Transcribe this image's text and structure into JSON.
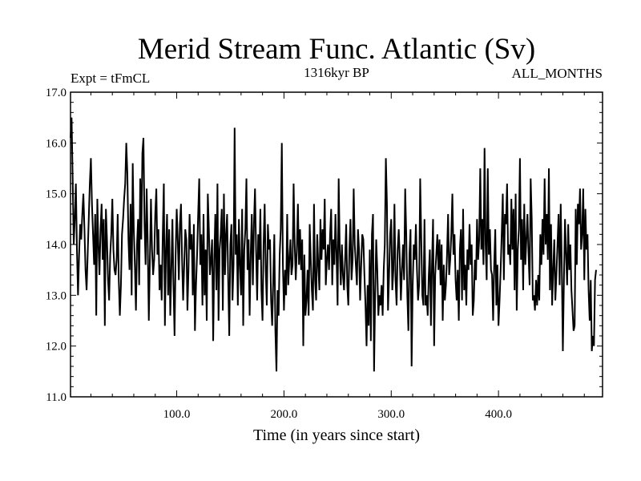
{
  "chart_data": {
    "type": "line",
    "title": "Merid Stream Func. Atlantic (Sv)",
    "subtitle_left": "Expt = tFmCL",
    "subtitle_center": "1316kyr BP",
    "subtitle_right": "ALL_MONTHS",
    "xlabel": "Time (in years since start)",
    "ylabel": "",
    "xlim": [
      1,
      497
    ],
    "ylim": [
      11.0,
      17.0
    ],
    "x_ticks": [
      100,
      200,
      300,
      400
    ],
    "x_tick_labels": [
      "100.0",
      "200.0",
      "300.0",
      "400.0"
    ],
    "y_ticks": [
      11,
      12,
      13,
      14,
      15,
      16,
      17
    ],
    "y_tick_labels": [
      "11.0",
      "12.0",
      "13.0",
      "14.0",
      "15.0",
      "16.0",
      "17.0"
    ],
    "grid": false,
    "series": [
      {
        "name": "Merid Stream Func. Atlantic",
        "x_start": 1,
        "x_step": 1,
        "values": [
          16.1,
          16.5,
          15.3,
          14.0,
          14.5,
          15.2,
          13.9,
          13.0,
          13.8,
          14.4,
          14.1,
          14.6,
          15.0,
          14.3,
          13.5,
          13.1,
          13.8,
          14.5,
          15.2,
          15.7,
          14.8,
          14.2,
          13.6,
          14.6,
          12.6,
          14.9,
          14.0,
          13.4,
          14.3,
          14.8,
          13.7,
          14.5,
          12.4,
          14.7,
          14.1,
          13.3,
          12.9,
          13.8,
          14.2,
          14.9,
          13.9,
          13.5,
          13.4,
          13.7,
          14.6,
          13.3,
          12.6,
          13.2,
          14.2,
          14.5,
          14.9,
          15.2,
          16.0,
          15.4,
          14.1,
          13.5,
          14.8,
          13.0,
          15.6,
          14.3,
          13.6,
          12.7,
          14.0,
          14.5,
          13.2,
          15.3,
          14.1,
          15.8,
          16.1,
          14.4,
          13.6,
          15.1,
          14.0,
          12.5,
          13.7,
          14.9,
          13.9,
          13.4,
          13.7,
          14.6,
          15.1,
          13.8,
          14.3,
          13.1,
          13.6,
          12.9,
          14.2,
          15.2,
          12.4,
          13.9,
          14.6,
          13.0,
          14.3,
          12.6,
          13.5,
          14.5,
          13.2,
          12.2,
          13.8,
          14.7,
          14.1,
          13.3,
          14.4,
          14.8,
          13.7,
          12.9,
          13.6,
          14.3,
          14.1,
          12.7,
          13.5,
          14.6,
          13.9,
          14.2,
          13.0,
          14.4,
          12.3,
          13.2,
          13.8,
          14.6,
          15.3,
          13.6,
          14.2,
          12.8,
          14.6,
          13.0,
          13.9,
          12.5,
          15.0,
          14.3,
          13.4,
          13.7,
          14.1,
          12.1,
          13.7,
          14.6,
          13.1,
          15.2,
          12.5,
          13.9,
          14.2,
          14.7,
          12.7,
          15.0,
          13.4,
          14.2,
          14.6,
          13.3,
          12.2,
          14.0,
          14.4,
          12.9,
          13.6,
          16.3,
          13.8,
          14.2,
          12.8,
          14.5,
          13.6,
          13.0,
          14.7,
          12.4,
          13.9,
          14.3,
          15.3,
          13.5,
          14.1,
          12.6,
          13.8,
          14.6,
          13.2,
          14.4,
          15.1,
          13.9,
          12.9,
          14.2,
          13.7,
          14.7,
          13.1,
          12.5,
          14.0,
          14.8,
          13.5,
          12.8,
          14.4,
          13.9,
          14.1,
          12.9,
          12.4,
          13.3,
          14.2,
          12.3,
          11.5,
          13.1,
          12.6,
          13.8,
          14.3,
          16.0,
          13.6,
          12.7,
          13.5,
          13.0,
          14.6,
          13.2,
          13.7,
          14.1,
          13.4,
          13.6,
          15.2,
          14.0,
          13.3,
          13.9,
          14.8,
          13.6,
          14.3,
          13.5,
          14.1,
          12.0,
          13.8,
          12.6,
          12.9,
          13.5,
          12.6,
          14.4,
          13.7,
          13.1,
          12.7,
          14.8,
          13.3,
          12.9,
          14.2,
          13.6,
          13.1,
          14.5,
          13.7,
          14.3,
          13.9,
          14.9,
          13.2,
          13.7,
          14.0,
          13.5,
          14.2,
          14.7,
          13.2,
          14.1,
          13.6,
          14.6,
          13.8,
          12.8,
          15.3,
          13.9,
          13.2,
          14.0,
          13.4,
          13.1,
          13.7,
          14.4,
          13.2,
          12.8,
          13.9,
          14.5,
          13.3,
          13.7,
          15.1,
          14.0,
          13.6,
          13.2,
          14.3,
          13.9,
          12.9,
          13.6,
          14.2,
          14.1,
          13.4,
          12.8,
          12.0,
          13.2,
          12.4,
          13.9,
          12.1,
          14.2,
          14.6,
          11.5,
          13.0,
          14.1,
          13.5,
          12.6,
          13.0,
          12.8,
          13.2,
          12.6,
          13.5,
          14.0,
          15.7,
          14.8,
          12.7,
          13.4,
          14.2,
          14.5,
          13.1,
          13.5,
          14.8,
          13.3,
          12.8,
          13.9,
          14.3,
          13.7,
          12.9,
          13.5,
          14.0,
          13.3,
          15.1,
          14.2,
          13.0,
          12.3,
          13.8,
          14.3,
          11.6,
          13.2,
          14.0,
          13.7,
          14.4,
          13.5,
          12.9,
          13.2,
          15.3,
          14.1,
          13.0,
          12.8,
          14.5,
          12.8,
          13.0,
          12.6,
          13.4,
          13.9,
          12.4,
          13.6,
          14.5,
          12.0,
          13.4,
          13.8,
          14.2,
          13.5,
          14.1,
          13.2,
          14.0,
          12.5,
          13.6,
          12.9,
          13.2,
          13.8,
          14.6,
          13.4,
          13.7,
          14.2,
          15.0,
          13.8,
          14.2,
          13.3,
          12.9,
          13.5,
          12.5,
          13.9,
          14.3,
          12.9,
          14.7,
          13.1,
          13.6,
          12.8,
          13.9,
          13.5,
          14.4,
          13.6,
          14.0,
          12.6,
          12.9,
          13.7,
          13.3,
          14.5,
          13.7,
          14.1,
          15.5,
          13.9,
          14.5,
          13.6,
          15.9,
          14.0,
          13.3,
          15.5,
          13.8,
          14.3,
          13.5,
          13.4,
          12.5,
          13.6,
          14.3,
          12.8,
          13.6,
          12.4,
          12.9,
          13.5,
          14.2,
          15.0,
          13.3,
          14.6,
          14.4,
          15.2,
          13.8,
          14.0,
          13.6,
          14.9,
          13.9,
          14.7,
          13.1,
          15.0,
          12.7,
          13.9,
          14.3,
          15.7,
          13.7,
          14.5,
          13.1,
          14.8,
          13.6,
          14.1,
          14.6,
          13.8,
          13.2,
          15.3,
          14.5,
          12.9,
          13.0,
          12.7,
          13.3,
          12.8,
          13.4,
          12.9,
          14.2,
          13.6,
          14.5,
          13.8,
          15.3,
          14.0,
          14.6,
          13.7,
          15.5,
          13.1,
          14.4,
          12.8,
          13.5,
          14.1,
          12.9,
          13.4,
          14.0,
          14.6,
          13.2,
          14.8,
          13.6,
          11.9,
          13.3,
          14.5,
          13.8,
          13.2,
          14.4,
          13.5,
          14.0,
          13.1,
          12.7,
          12.3,
          12.4,
          14.7,
          13.6,
          14.8,
          14.4,
          15.1,
          13.9,
          14.2,
          15.1,
          13.3,
          14.7,
          13.9,
          14.2,
          13.1,
          12.5,
          13.3,
          11.9,
          12.2,
          12.0,
          13.3,
          13.5
        ]
      }
    ]
  }
}
